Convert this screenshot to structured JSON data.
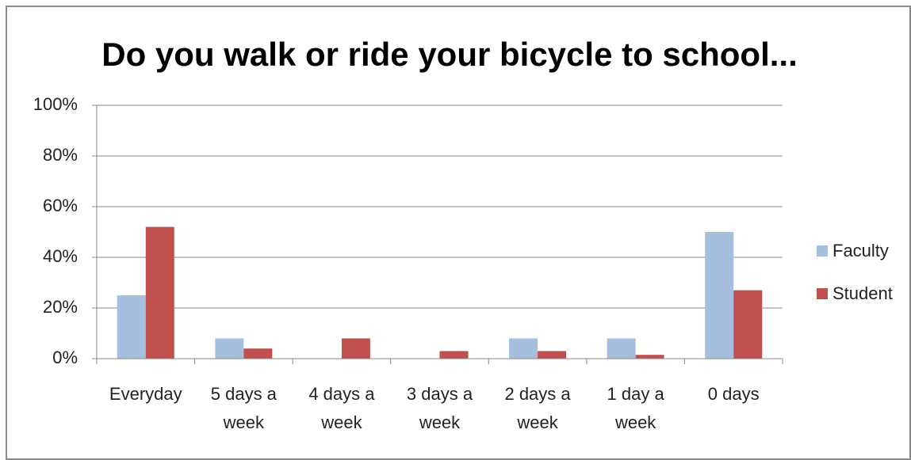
{
  "chart_data": {
    "type": "bar",
    "title": "Do you walk or ride your bicycle to school...",
    "categories": [
      "Everyday",
      "5 days a week",
      "4 days a week",
      "3 days a week",
      "2 days a week",
      "1 day a week",
      "0 days"
    ],
    "series": [
      {
        "name": "Faculty",
        "color": "#a7bfde",
        "values": [
          25,
          8,
          0,
          0,
          8,
          8,
          50
        ]
      },
      {
        "name": "Student",
        "color": "#c0504d",
        "values": [
          52,
          4,
          8,
          3,
          3,
          1.5,
          27
        ]
      }
    ],
    "ylim": [
      0,
      100
    ],
    "yticks": [
      {
        "value": 0,
        "label": "0%"
      },
      {
        "value": 20,
        "label": "20%"
      },
      {
        "value": 40,
        "label": "40%"
      },
      {
        "value": 60,
        "label": "60%"
      },
      {
        "value": 80,
        "label": "80%"
      },
      {
        "value": 100,
        "label": "100%"
      }
    ],
    "grid": true,
    "legend": "right"
  }
}
